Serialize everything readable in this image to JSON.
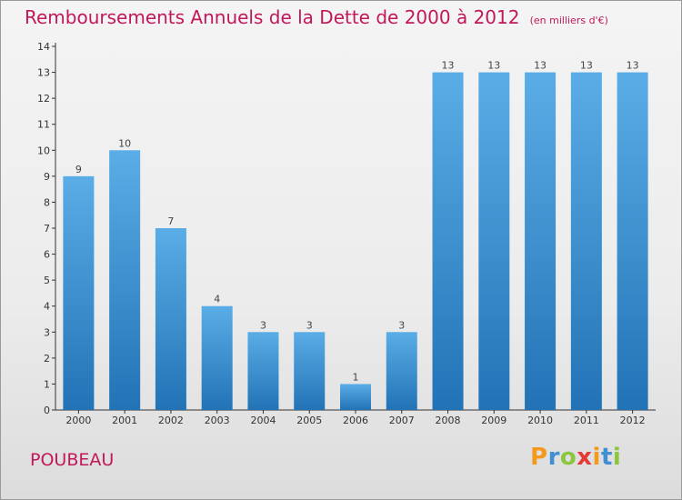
{
  "title": "Remboursements Annuels de la Dette de 2000 à 2012",
  "unit_note": "(en milliers d'€)",
  "commune": "POUBEAU",
  "brand": "Proxiti",
  "colors": {
    "title": "#c2185b",
    "bar_top": "#5aade6",
    "bar_bottom": "#2273b6",
    "axis": "#333333"
  },
  "chart_data": {
    "type": "bar",
    "categories": [
      "2000",
      "2001",
      "2002",
      "2003",
      "2004",
      "2005",
      "2006",
      "2007",
      "2008",
      "2009",
      "2010",
      "2011",
      "2012"
    ],
    "values": [
      9,
      10,
      7,
      4,
      3,
      3,
      1,
      3,
      13,
      13,
      13,
      13,
      13
    ],
    "title": "Remboursements Annuels de la Dette de 2000 à 2012",
    "xlabel": "",
    "ylabel": "",
    "ylim": [
      0,
      14
    ],
    "yticks": [
      0,
      1,
      2,
      3,
      4,
      5,
      6,
      7,
      8,
      9,
      10,
      11,
      12,
      13,
      14
    ],
    "grid": false,
    "legend": "none"
  }
}
